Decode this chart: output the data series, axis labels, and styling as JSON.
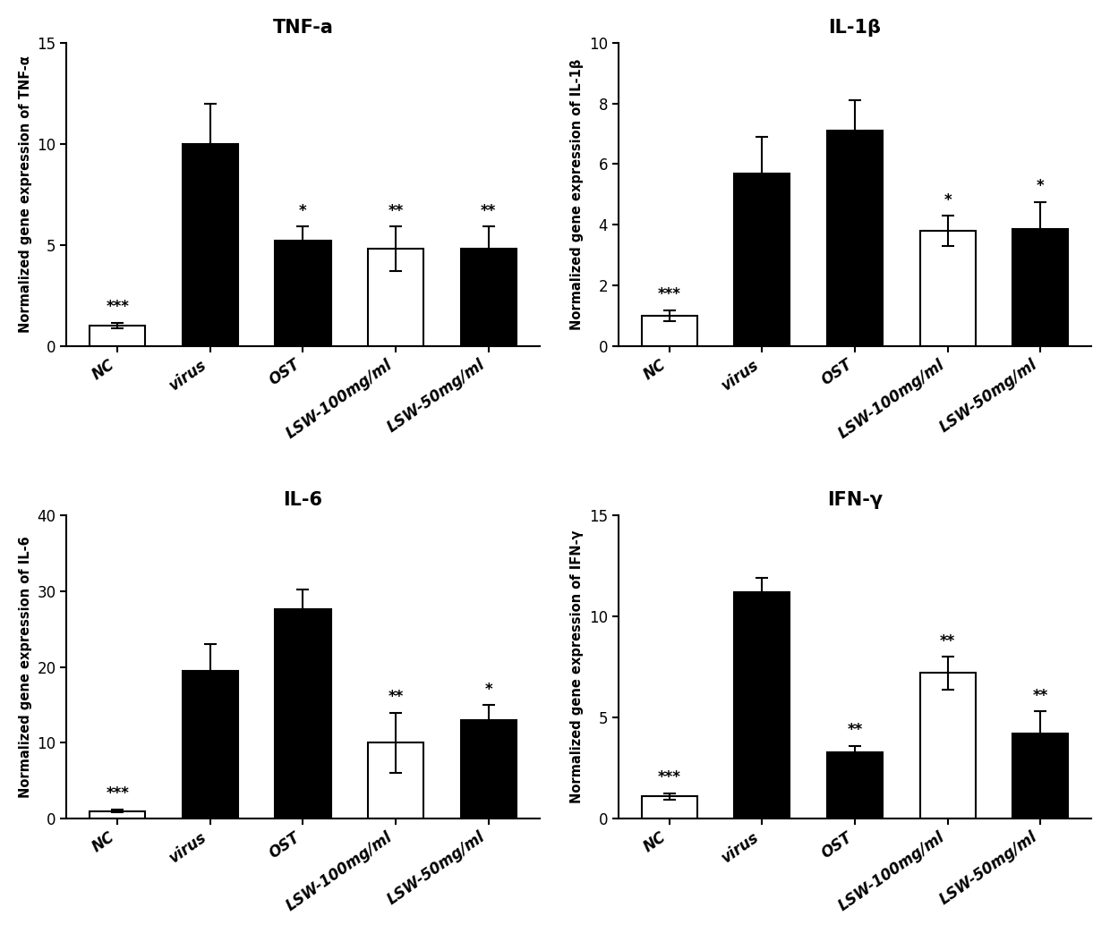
{
  "subplots": [
    {
      "title": "TNF-a",
      "ylabel": "Normalized gene expression of TNF-α",
      "ylim": [
        0,
        15
      ],
      "yticks": [
        0,
        5,
        10,
        15
      ],
      "categories": [
        "NC",
        "virus",
        "OST",
        "LSW-100mg/ml",
        "LSW-50mg/ml"
      ],
      "values": [
        1.0,
        10.0,
        5.2,
        4.8,
        4.8
      ],
      "errors": [
        0.15,
        2.0,
        0.7,
        1.1,
        1.1
      ],
      "colors": [
        "white",
        "black",
        "black",
        "white",
        "black"
      ],
      "stars": [
        "***",
        "",
        "*",
        "**",
        "**"
      ]
    },
    {
      "title": "IL-1β",
      "ylabel": "Normalized gene expression of IL-1β",
      "ylim": [
        0,
        10
      ],
      "yticks": [
        0,
        2,
        4,
        6,
        8,
        10
      ],
      "categories": [
        "NC",
        "virus",
        "OST",
        "LSW-100mg/ml",
        "LSW-50mg/ml"
      ],
      "values": [
        1.0,
        5.7,
        7.1,
        3.8,
        3.85
      ],
      "errors": [
        0.18,
        1.2,
        1.0,
        0.5,
        0.9
      ],
      "colors": [
        "white",
        "black",
        "black",
        "white",
        "black"
      ],
      "stars": [
        "***",
        "",
        "",
        "*",
        "*"
      ]
    },
    {
      "title": "IL-6",
      "ylabel": "Normalized gene expression of IL-6",
      "ylim": [
        0,
        40
      ],
      "yticks": [
        0,
        10,
        20,
        30,
        40
      ],
      "categories": [
        "NC",
        "virus",
        "OST",
        "LSW-100mg/ml",
        "LSW-50mg/ml"
      ],
      "values": [
        1.0,
        19.5,
        27.7,
        10.0,
        13.0
      ],
      "errors": [
        0.2,
        3.5,
        2.5,
        4.0,
        2.0
      ],
      "colors": [
        "white",
        "black",
        "black",
        "white",
        "black"
      ],
      "stars": [
        "***",
        "",
        "",
        "**",
        "*"
      ]
    },
    {
      "title": "IFN-γ",
      "ylabel": "Normalized gene expression of IFN-γ",
      "ylim": [
        0,
        15
      ],
      "yticks": [
        0,
        5,
        10,
        15
      ],
      "categories": [
        "NC",
        "virus",
        "OST",
        "LSW-100mg/ml",
        "LSW-50mg/ml"
      ],
      "values": [
        1.1,
        11.2,
        3.3,
        7.2,
        4.2
      ],
      "errors": [
        0.15,
        0.7,
        0.3,
        0.8,
        1.1
      ],
      "colors": [
        "white",
        "black",
        "black",
        "white",
        "black"
      ],
      "stars": [
        "***",
        "",
        "**",
        "**",
        "**"
      ]
    }
  ],
  "background_color": "#ffffff",
  "bar_width": 0.6,
  "title_fontsize": 15,
  "label_fontsize": 10.5,
  "tick_fontsize": 12,
  "star_fontsize": 12,
  "edgecolor": "black",
  "linewidth": 1.5
}
